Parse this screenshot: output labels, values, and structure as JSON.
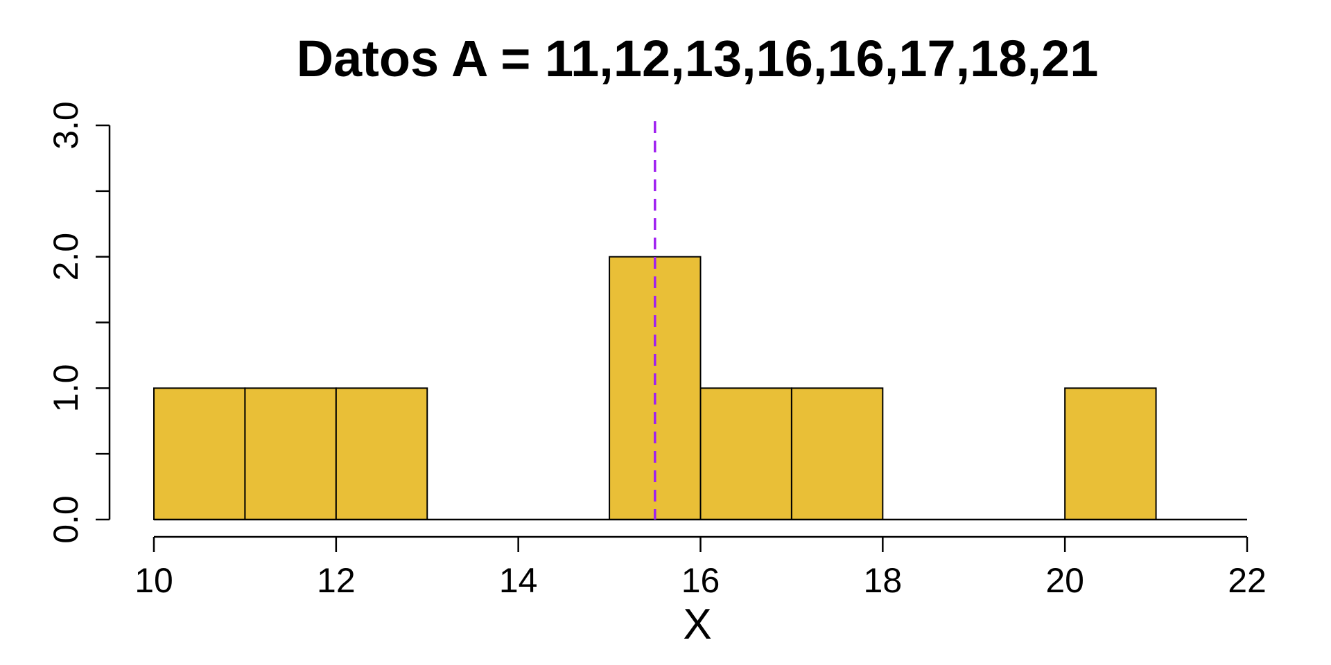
{
  "chart_data": {
    "type": "bar",
    "title": "Datos A = 11,12,13,16,16,17,18,21",
    "xlabel": "X",
    "ylabel": "",
    "bins": [
      {
        "x0": 10,
        "x1": 11,
        "count": 1
      },
      {
        "x0": 11,
        "x1": 12,
        "count": 1
      },
      {
        "x0": 12,
        "x1": 13,
        "count": 1
      },
      {
        "x0": 15,
        "x1": 16,
        "count": 2
      },
      {
        "x0": 16,
        "x1": 17,
        "count": 1
      },
      {
        "x0": 17,
        "x1": 18,
        "count": 1
      },
      {
        "x0": 20,
        "x1": 21,
        "count": 1
      }
    ],
    "xlim": [
      10,
      22
    ],
    "ylim": [
      0,
      3
    ],
    "x_ticks": [
      10,
      12,
      14,
      16,
      18,
      20,
      22
    ],
    "x_tick_labels": [
      "10",
      "12",
      "14",
      "16",
      "18",
      "20",
      "22"
    ],
    "y_ticks": [
      0,
      0.5,
      1,
      1.5,
      2,
      2.5,
      3
    ],
    "y_tick_labels": [
      "0.0",
      "",
      "1.0",
      "",
      "2.0",
      "",
      "3.0"
    ],
    "mean_line": {
      "value": 15.5,
      "style": "dashed",
      "color": "#a020f0"
    },
    "baseline": {
      "from": 10,
      "to": 22
    },
    "colors": {
      "bar_fill": "#e9bf37",
      "bar_border": "#000000",
      "mean": "#a020f0"
    },
    "grid": false,
    "legend": "none"
  }
}
